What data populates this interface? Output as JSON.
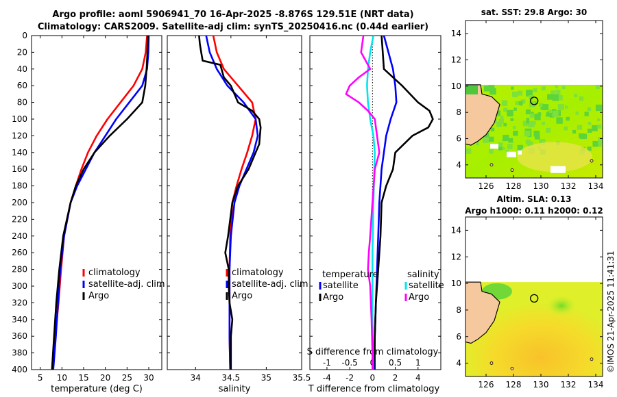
{
  "header": {
    "title_line1": "Argo profile: aoml 5906941_70 16-Apr-2025 -8.876S 129.51E (NRT data)",
    "title_line2": "Climatology: CARS2009. Satellite-adj clim: synTS_20250416.nc (0.44d earlier)"
  },
  "colors": {
    "climatology": "#ff0000",
    "satellite": "#0000ff",
    "argo": "#000000",
    "salinity_sat": "#00e5ee",
    "salinity_argo": "#ff00ff",
    "land": "#f6c89e",
    "no_data": "#ffffff"
  },
  "chart_data": [
    {
      "id": "temperature_profile",
      "type": "line",
      "xlabel": "temperature (deg C)",
      "ylabel": "",
      "xlim": [
        3,
        33
      ],
      "ylim": [
        400,
        0
      ],
      "xticks": [
        5,
        10,
        15,
        20,
        25,
        30
      ],
      "yticks": [
        0,
        20,
        40,
        60,
        80,
        100,
        120,
        140,
        160,
        180,
        200,
        220,
        240,
        260,
        280,
        300,
        320,
        340,
        360,
        380,
        400
      ],
      "legend": [
        "climatology",
        "satellite-adj. clim",
        "Argo"
      ],
      "legend_position": "lower-right",
      "series": [
        {
          "name": "climatology",
          "depth": [
            0,
            20,
            40,
            60,
            80,
            100,
            120,
            140,
            160,
            180,
            200,
            240,
            280,
            320,
            360,
            400
          ],
          "values": [
            29.6,
            29.3,
            28.5,
            26.5,
            23.5,
            20.5,
            18.0,
            16.0,
            14.5,
            13.2,
            12.0,
            10.5,
            9.8,
            9.2,
            8.5,
            7.8
          ]
        },
        {
          "name": "satellite-adj. clim",
          "depth": [
            0,
            20,
            40,
            60,
            80,
            100,
            120,
            140,
            160,
            180,
            200,
            240,
            280,
            320,
            360,
            400
          ],
          "values": [
            30.0,
            29.9,
            29.6,
            28.5,
            25.5,
            22.5,
            20.0,
            17.5,
            15.5,
            13.5,
            12.0,
            10.5,
            9.6,
            9.1,
            8.6,
            8.0
          ]
        },
        {
          "name": "Argo",
          "depth": [
            0,
            20,
            40,
            60,
            80,
            100,
            120,
            140,
            160,
            180,
            200,
            240,
            280,
            320,
            360,
            400
          ],
          "values": [
            29.8,
            29.7,
            29.5,
            29.2,
            28.5,
            25.0,
            21.0,
            17.5,
            15.0,
            13.2,
            12.0,
            10.3,
            9.4,
            8.7,
            8.2,
            7.7
          ]
        }
      ]
    },
    {
      "id": "salinity_profile",
      "type": "line",
      "xlabel": "salinity",
      "xlim": [
        33.6,
        35.5
      ],
      "ylim": [
        400,
        0
      ],
      "xticks": [
        34,
        34.5,
        35,
        35.5
      ],
      "xtick_labels": [
        "34",
        "34.5",
        "35",
        "35.5"
      ],
      "legend": [
        "climatology",
        "satellite-adj. clim",
        "Argo"
      ],
      "legend_position": "lower-right",
      "series": [
        {
          "name": "climatology",
          "depth": [
            0,
            20,
            40,
            60,
            80,
            100,
            120,
            140,
            160,
            180,
            200,
            240,
            280,
            320,
            360,
            400
          ],
          "values": [
            34.25,
            34.3,
            34.4,
            34.6,
            34.8,
            34.85,
            34.8,
            34.73,
            34.65,
            34.58,
            34.52,
            34.49,
            34.48,
            34.48,
            34.48,
            34.49
          ]
        },
        {
          "name": "satellite-adj. clim",
          "depth": [
            0,
            20,
            40,
            60,
            80,
            100,
            120,
            140,
            160,
            180,
            200,
            240,
            280,
            320,
            360,
            400
          ],
          "values": [
            34.15,
            34.2,
            34.3,
            34.45,
            34.68,
            34.85,
            34.88,
            34.82,
            34.72,
            34.62,
            34.55,
            34.5,
            34.48,
            34.48,
            34.48,
            34.49
          ]
        },
        {
          "name": "Argo",
          "depth": [
            0,
            10,
            20,
            30,
            35,
            50,
            60,
            80,
            90,
            100,
            110,
            120,
            130,
            140,
            160,
            180,
            200,
            240,
            260,
            280,
            300,
            320,
            340,
            360,
            380,
            400
          ],
          "values": [
            34.05,
            34.06,
            34.08,
            34.1,
            34.35,
            34.4,
            34.5,
            34.6,
            34.8,
            34.9,
            34.92,
            34.91,
            34.9,
            34.85,
            34.75,
            34.6,
            34.52,
            34.46,
            34.42,
            34.47,
            34.47,
            34.48,
            34.52,
            34.5,
            34.5,
            34.5
          ]
        }
      ]
    },
    {
      "id": "difference_profile",
      "type": "line",
      "xlabel": "T difference from climatology",
      "xlabel_top": "S difference from climatology",
      "xlim": [
        -5.5,
        6
      ],
      "s_xlim": [
        -1.375,
        1.5
      ],
      "ylim": [
        400,
        0
      ],
      "xticks": [
        -4,
        -2,
        0,
        2,
        4
      ],
      "xtick_labels": [
        "-4",
        "-2",
        "0",
        "2",
        "4"
      ],
      "s_ticks": [
        -1,
        -0.5,
        0,
        0.5,
        1
      ],
      "s_tick_labels": [
        "-1",
        "-0.5",
        "0",
        "0.5",
        "1"
      ],
      "legend_temperature_title": "temperature",
      "legend_salinity_title": "salinity",
      "legend_temperature": [
        "satellite",
        "Argo"
      ],
      "legend_salinity": [
        "satellite",
        "Argo"
      ],
      "series": [
        {
          "name": "T satellite",
          "depth": [
            0,
            20,
            40,
            60,
            80,
            100,
            120,
            140,
            160,
            200,
            240,
            280,
            320,
            360,
            400
          ],
          "values": [
            1.0,
            1.4,
            1.8,
            2.0,
            2.1,
            1.6,
            1.2,
            1.0,
            0.8,
            0.6,
            0.5,
            0.4,
            0.3,
            0.2,
            0.2
          ]
        },
        {
          "name": "T Argo",
          "depth": [
            0,
            20,
            40,
            60,
            80,
            90,
            100,
            110,
            120,
            140,
            160,
            180,
            200,
            240,
            280,
            320,
            360,
            400
          ],
          "values": [
            0.8,
            0.9,
            1.0,
            2.6,
            4.0,
            5.0,
            5.3,
            4.9,
            3.5,
            2.0,
            1.8,
            1.2,
            0.8,
            0.7,
            0.5,
            0.3,
            0.2,
            0.1
          ]
        },
        {
          "name": "S satellite",
          "depth": [
            0,
            20,
            40,
            60,
            80,
            100,
            120,
            140,
            200,
            260,
            300,
            340,
            380,
            400
          ],
          "values": [
            0.02,
            -0.05,
            -0.1,
            -0.12,
            -0.1,
            -0.05,
            0.02,
            0.05,
            0.02,
            0.0,
            0.0,
            0.0,
            0.01,
            0.01
          ]
        },
        {
          "name": "S Argo",
          "depth": [
            0,
            20,
            40,
            50,
            60,
            70,
            80,
            90,
            100,
            120,
            140,
            160,
            200,
            240,
            260,
            280,
            300,
            340,
            380,
            400
          ],
          "values": [
            -0.2,
            -0.25,
            -0.05,
            -0.3,
            -0.5,
            -0.58,
            -0.3,
            -0.1,
            0.05,
            0.1,
            0.15,
            0.05,
            0.0,
            -0.05,
            -0.08,
            -0.1,
            -0.05,
            -0.02,
            0.0,
            0.0
          ]
        }
      ]
    },
    {
      "id": "sst_map",
      "type": "heatmap",
      "title": "sat. SST: 29.8  Argo: 30",
      "xlim": [
        124.5,
        134.5
      ],
      "ylim": [
        3,
        15
      ],
      "xticks": [
        126,
        128,
        130,
        132,
        134
      ],
      "yticks": [
        4,
        6,
        8,
        10,
        12,
        14
      ],
      "data_lat_range": [
        3,
        10.1
      ],
      "profile_location": [
        129.51,
        8.876
      ]
    },
    {
      "id": "sla_map",
      "type": "heatmap",
      "title": "Altim. SLA: 0.13",
      "subtitle": "Argo h1000: 0.11  h2000: 0.12",
      "xlim": [
        124.5,
        134.5
      ],
      "ylim": [
        3,
        15
      ],
      "xticks": [
        126,
        128,
        130,
        132,
        134
      ],
      "yticks": [
        4,
        6,
        8,
        10,
        12,
        14
      ],
      "data_lat_range": [
        3,
        10.1
      ],
      "profile_location": [
        129.51,
        8.876
      ]
    }
  ],
  "footer": {
    "stamp": "©IMOS 21-Apr-2025 11:41:31"
  }
}
